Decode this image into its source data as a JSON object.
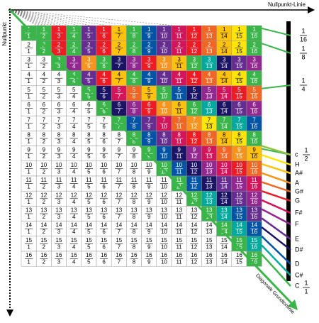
{
  "header": {
    "origin_label": "Nullpunkt",
    "line_label": "Nullpunkt-Linie"
  },
  "grid": {
    "numbers": [
      1,
      2,
      3,
      4,
      5,
      6,
      7,
      8,
      9,
      10,
      11,
      12,
      13,
      14,
      15,
      16
    ]
  },
  "legend": {
    "octaves": [
      {
        "num": 1,
        "den": 16
      },
      {
        "num": 1,
        "den": 8
      },
      {
        "num": 1,
        "den": 4
      },
      {
        "num": 1,
        "den": 2
      }
    ],
    "notes": [
      {
        "name": "c",
        "color": "#8dc63f"
      },
      {
        "name": "H",
        "color": "#ffe600"
      },
      {
        "name": "A#",
        "color": "#ffc20e"
      },
      {
        "name": "A",
        "color": "#f7941d"
      },
      {
        "name": "G#",
        "color": "#f26522"
      },
      {
        "name": "G",
        "color": "#ed1c24"
      },
      {
        "name": "F#",
        "color": "#d4145a"
      },
      {
        "name": "F",
        "color": "#92278f"
      },
      {
        "name": "E",
        "color": "#662d91"
      },
      {
        "name": "D#",
        "color": "#1b1464"
      },
      {
        "name": "D",
        "color": "#0054a6"
      },
      {
        "name": "C#",
        "color": "#00a99d"
      },
      {
        "name": "C",
        "color": "#39b54a"
      }
    ],
    "unison": {
      "num": 1,
      "den": 1
    }
  },
  "diagonal_label": "Diagonale Grundtonlinie"
}
